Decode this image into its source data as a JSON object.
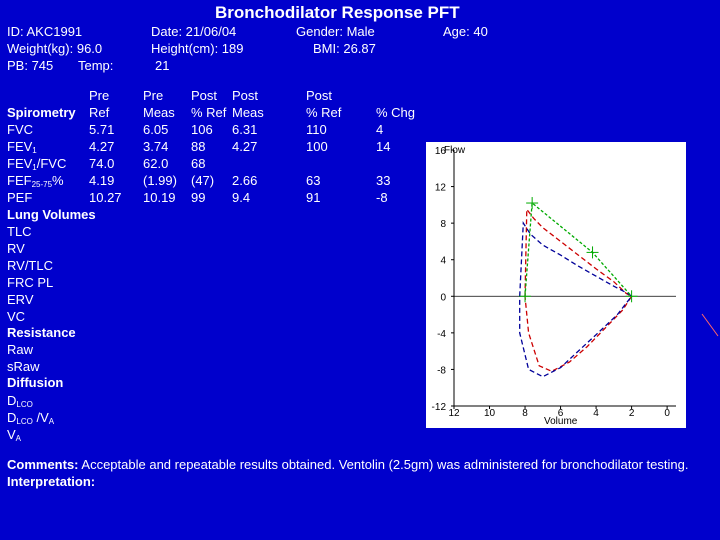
{
  "title": "Bronchodilator Response PFT",
  "header": {
    "id": "ID: AKC1991",
    "date": "Date: 21/06/04",
    "gender": "Gender: Male",
    "age": "Age: 40",
    "weight": "Weight(kg): 96.0",
    "height": "Height(cm): 189",
    "bmi": "BMI: 26.87",
    "pb": "PB: 745",
    "temp": "Temp:",
    "temp_value": "21"
  },
  "table": {
    "headers": {
      "pre_ref": [
        "Pre",
        "Ref"
      ],
      "pre_meas": [
        "Pre",
        "Meas"
      ],
      "post_pct_ref": [
        "Post",
        "% Ref"
      ],
      "post_meas": [
        "Post",
        "Meas"
      ],
      "post_ref": [
        "Post",
        "% Ref"
      ],
      "pct_chg": [
        "",
        "% Chg"
      ]
    },
    "section_spirometry": "Spirometry",
    "rows": [
      {
        "name": "FVC",
        "sub": "",
        "suffix": "",
        "ref": "5.71",
        "pre": "6.05",
        "post_pct": "106",
        "post": "6.31",
        "post_ref": "110",
        "chg": "4"
      },
      {
        "name": "FEV",
        "sub": "1",
        "suffix": "",
        "ref": "4.27",
        "pre": "3.74",
        "post_pct": "88",
        "post": "4.27",
        "post_ref": "100",
        "chg": "14"
      },
      {
        "name": "FEV",
        "sub": "1",
        "suffix": "/FVC",
        "ref": "74.0",
        "pre": "62.0",
        "post_pct": "68",
        "post": "",
        "post_ref": "",
        "chg": ""
      },
      {
        "name": "FEF",
        "sub": "25-75",
        "suffix": "%",
        "ref": "4.19",
        "pre": "(1.99)",
        "post_pct": "(47)",
        "post": "2.66",
        "post_ref": "63",
        "chg": "33"
      },
      {
        "name": "PEF",
        "sub": "",
        "suffix": "",
        "ref": "10.27",
        "pre": "10.19",
        "post_pct": "99",
        "post": "9.4",
        "post_ref": "91",
        "chg": "-8"
      }
    ],
    "section_lung_volumes": "Lung Volumes",
    "lung_volumes": [
      "TLC",
      "RV",
      "RV/TLC",
      "FRC PL",
      "ERV",
      "VC"
    ],
    "section_resistance": "Resistance",
    "resistance": [
      "Raw",
      "sRaw"
    ],
    "section_diffusion": "Diffusion",
    "diffusion": [
      {
        "name": "D",
        "sub": "LCO",
        "suffix": ""
      },
      {
        "name": "D",
        "sub": "LCO",
        "suffix": " /V"
      },
      {
        "name": "V",
        "sub": "A",
        "suffix": ""
      }
    ],
    "diffusion_va_sub": "A"
  },
  "chart_data": {
    "type": "line",
    "ylabel": "Flow",
    "xlabel": "Volume",
    "x_ticks": [
      "12",
      "10",
      "8",
      "6",
      "4",
      "2",
      "0"
    ],
    "y_ticks": [
      "16",
      "12",
      "8",
      "4",
      "0",
      "-4",
      "-8",
      "-12"
    ],
    "xlim": [
      12,
      -0.5
    ],
    "ylim": [
      -12,
      16
    ],
    "series": [
      {
        "name": "pre",
        "color": "#cc0000",
        "dash": "5,3",
        "x": [
          8.0,
          7.9,
          7.5,
          7.0,
          6.0,
          5.0,
          4.0,
          3.0,
          2.3,
          2.0,
          2.5,
          3.5,
          4.5,
          5.5,
          6.5,
          7.2,
          7.8,
          8.0
        ],
        "y": [
          0,
          9.5,
          8.5,
          7.5,
          6.0,
          4.5,
          3.0,
          1.6,
          0.3,
          0,
          -1.5,
          -3.5,
          -5.5,
          -7.2,
          -8.2,
          -7.6,
          -4.0,
          0
        ]
      },
      {
        "name": "post",
        "color": "#000099",
        "dash": "5,3",
        "x": [
          8.3,
          8.1,
          7.7,
          7.0,
          6.0,
          5.0,
          4.0,
          3.0,
          2.2,
          2.0,
          2.8,
          4.0,
          5.0,
          6.0,
          7.0,
          7.8,
          8.3,
          8.3
        ],
        "y": [
          0,
          8.0,
          6.8,
          5.6,
          4.5,
          3.3,
          2.2,
          1.1,
          0.3,
          0,
          -2.0,
          -4.2,
          -6.0,
          -7.8,
          -8.8,
          -8.0,
          -4.0,
          0
        ]
      },
      {
        "name": "predicted",
        "color": "#00aa00",
        "dash": "3,2",
        "x": [
          8.0,
          7.6,
          4.2,
          2.0
        ],
        "y": [
          0,
          10.2,
          4.8,
          0
        ]
      }
    ]
  },
  "comments": {
    "label": "Comments:",
    "text": " Acceptable and repeatable results obtained. Ventolin (2.5gm) was administered for bronchodilator testing.",
    "interpretation_label": "Interpretation:"
  }
}
